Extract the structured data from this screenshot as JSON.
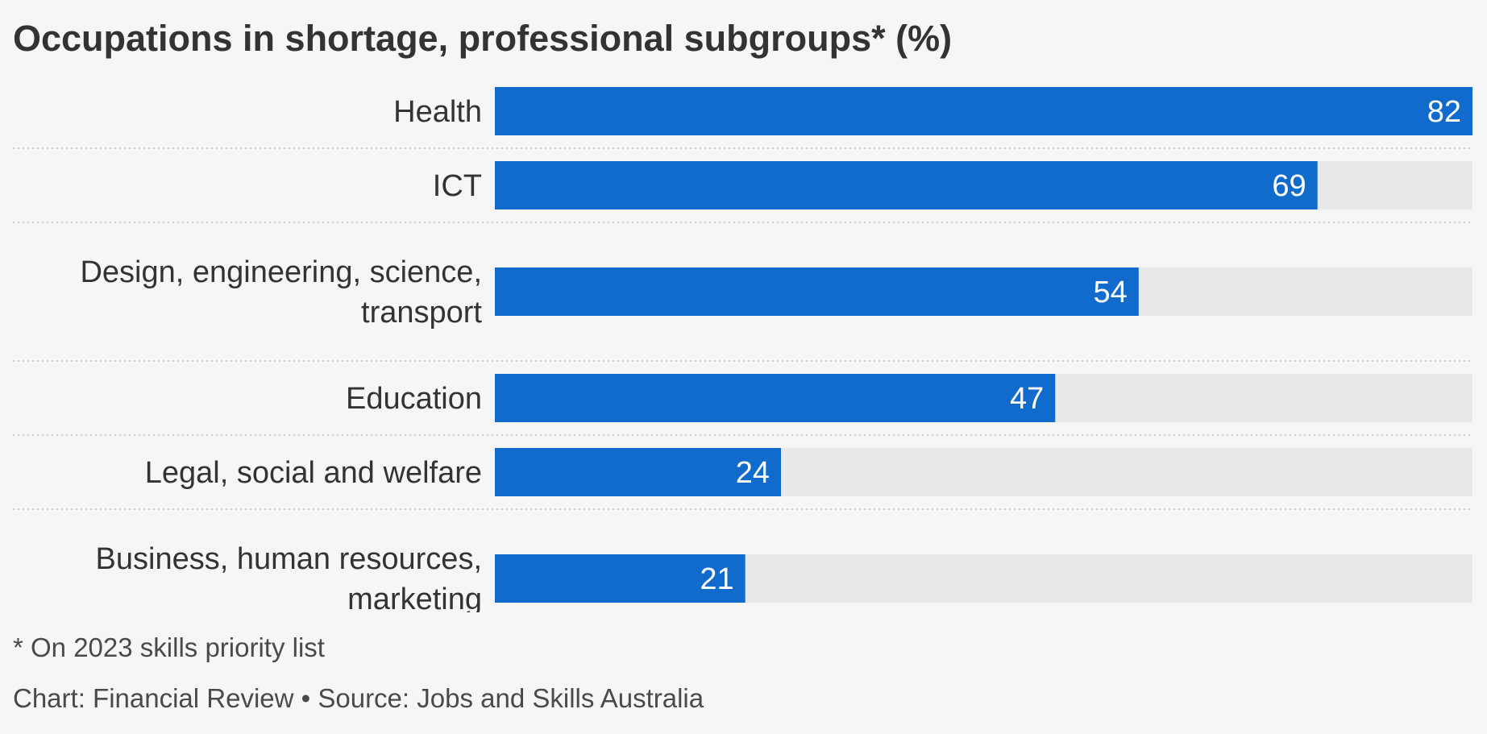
{
  "chart_data": {
    "type": "bar",
    "orientation": "horizontal",
    "title": "Occupations in shortage, professional subgroups* (%)",
    "categories": [
      [
        "Health"
      ],
      [
        "ICT"
      ],
      [
        "Design, engineering, science,",
        "transport"
      ],
      [
        "Education"
      ],
      [
        "Legal, social and welfare"
      ],
      [
        "Business, human resources,",
        "marketing"
      ]
    ],
    "values": [
      82,
      69,
      54,
      47,
      24,
      21
    ],
    "xlim": [
      0,
      82
    ],
    "grid": false,
    "bar_color": "#116bcd",
    "track_color": "#e9e9e9",
    "separator_color": "#cfcfcf"
  },
  "footnote": "* On 2023 skills priority list",
  "credits": "Chart: Financial Review • Source: Jobs and Skills Australia"
}
